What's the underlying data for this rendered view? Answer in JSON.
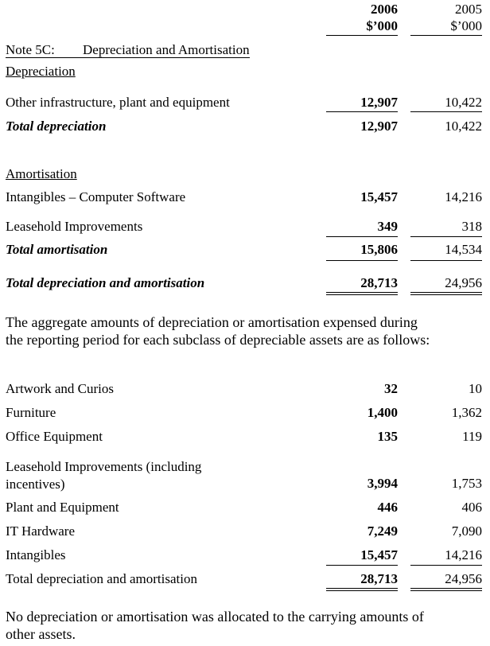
{
  "header": {
    "col_2006": {
      "year": "2006",
      "unit": "$’000"
    },
    "col_2005": {
      "year": "2005",
      "unit": "$’000"
    }
  },
  "note": {
    "label": "Note 5C:",
    "title": "Depreciation and Amortisation"
  },
  "depreciation": {
    "heading": "Depreciation",
    "rows": [
      [
        "Other infrastructure, plant and equipment",
        "12,907",
        "10,422"
      ]
    ],
    "total": [
      "Total depreciation",
      "12,907",
      "10,422"
    ]
  },
  "amortisation": {
    "heading": "Amortisation",
    "rows": [
      [
        "Intangibles – Computer Software",
        "15,457",
        "14,216"
      ],
      [
        "Leasehold Improvements",
        "349",
        "318"
      ]
    ],
    "total": [
      "Total amortisation",
      "15,806",
      "14,534"
    ]
  },
  "grand_total": [
    "Total depreciation and amortisation",
    "28,713",
    "24,956"
  ],
  "paragraph": [
    "The aggregate amounts of depreciation or amortisation expensed during",
    "the reporting period for each subclass of depreciable assets are as follows:"
  ],
  "subclasses": {
    "rows": [
      [
        "Artwork and Curios",
        "32",
        "10"
      ],
      [
        "Furniture",
        "1,400",
        "1,362"
      ],
      [
        "Office Equipment",
        "135",
        "119"
      ],
      [
        "Leasehold Improvements (including incentives)",
        "3,994",
        "1,753"
      ],
      [
        "Plant and Equipment",
        "446",
        "406"
      ],
      [
        "IT Hardware",
        "7,249",
        "7,090"
      ],
      [
        "Intangibles",
        "15,457",
        "14,216"
      ]
    ],
    "total": [
      "Total depreciation and amortisation",
      "28,713",
      "24,956"
    ]
  },
  "footer": [
    "No depreciation or amortisation was allocated to the carrying amounts of",
    "other assets."
  ]
}
